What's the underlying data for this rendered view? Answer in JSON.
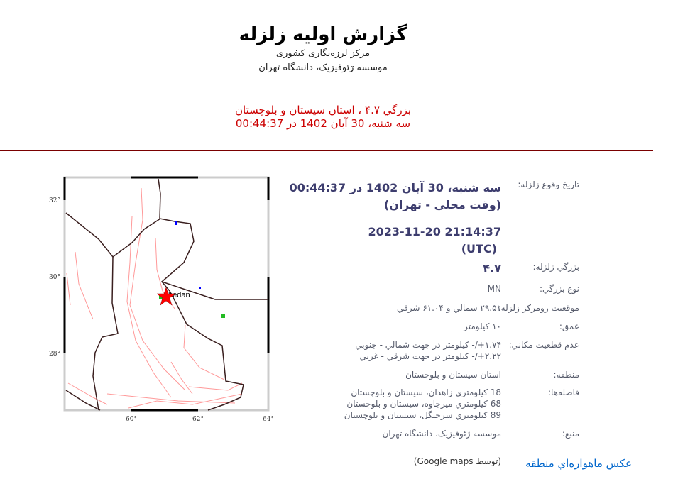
{
  "header": {
    "title": "گزارش اولیه زلزله",
    "subtitle1": "مرکز لرزه‌نگاری کشوری",
    "subtitle2": "موسسه ژئوفیزیک، دانشگاه تهران",
    "summary_line1": "بزرگي ۴.۷ ، استان سيستان و بلوچستان",
    "summary_line2": "سه شنبه، 30 آبان 1402 در 00:44:37"
  },
  "colors": {
    "summary": "#cc0000",
    "rule": "#7a0000",
    "value": "#3d3d6e",
    "link": "#0066cc",
    "epicenter": "#ff0000"
  },
  "details": {
    "date_label": "تاريخ وقوع زلزله:",
    "date_local": "سه شنبه، 30 آبان 1402 در 00:44:37",
    "date_local_note": "(وقت محلي - تهران)",
    "date_utc": "2023-11-20 21:14:37",
    "date_utc_note": "(UTC)",
    "mag_label": "بزرگي زلزله:",
    "mag_value": "۴.۷",
    "magtype_label": "نوع بزرگي:",
    "magtype_value": "MN",
    "loc_label": "موقعيت رومرکز زلزله:",
    "loc_value": "۲۹.۵۱ شمالي و ۶۱.۰۴ شرقي",
    "depth_label": "عمق:",
    "depth_value": "۱۰ کيلومتر",
    "unc_label": "عدم قطعيت مکاني:",
    "unc_line1": "۱.۷۴+/- کيلومتر در جهت شمالي - جنوبي",
    "unc_line2": "۲.۲۲+/- کيلومتر در جهت شرقي - غربي",
    "region_label": "منطقه:",
    "region_value": "استان سيستان و بلوچستان",
    "dist_label": "فاصله‌ها:",
    "dist_lines": [
      "18 کيلومتري زاهدان، سيستان و بلوچستان",
      "68 کيلومتري ميرجاوه، سيستان و بلوچستان",
      "89 کيلومتري سرجنگل، سيستان و بلوچستان"
    ],
    "source_label": "منبع:",
    "source_value": "موسسه ژئوفيزيک، دانشگاه تهران"
  },
  "footer": {
    "satellite_link": "عکس ماهواره‌اي منطقه",
    "google_note": "(توسط Google maps)"
  },
  "map": {
    "city_label": "hedan",
    "lon_ticks": [
      "60°",
      "62°",
      "64°"
    ],
    "lat_ticks": [
      "32°",
      "30°",
      "28°"
    ],
    "epicenter": {
      "lat": 29.51,
      "lon": 61.04
    }
  }
}
